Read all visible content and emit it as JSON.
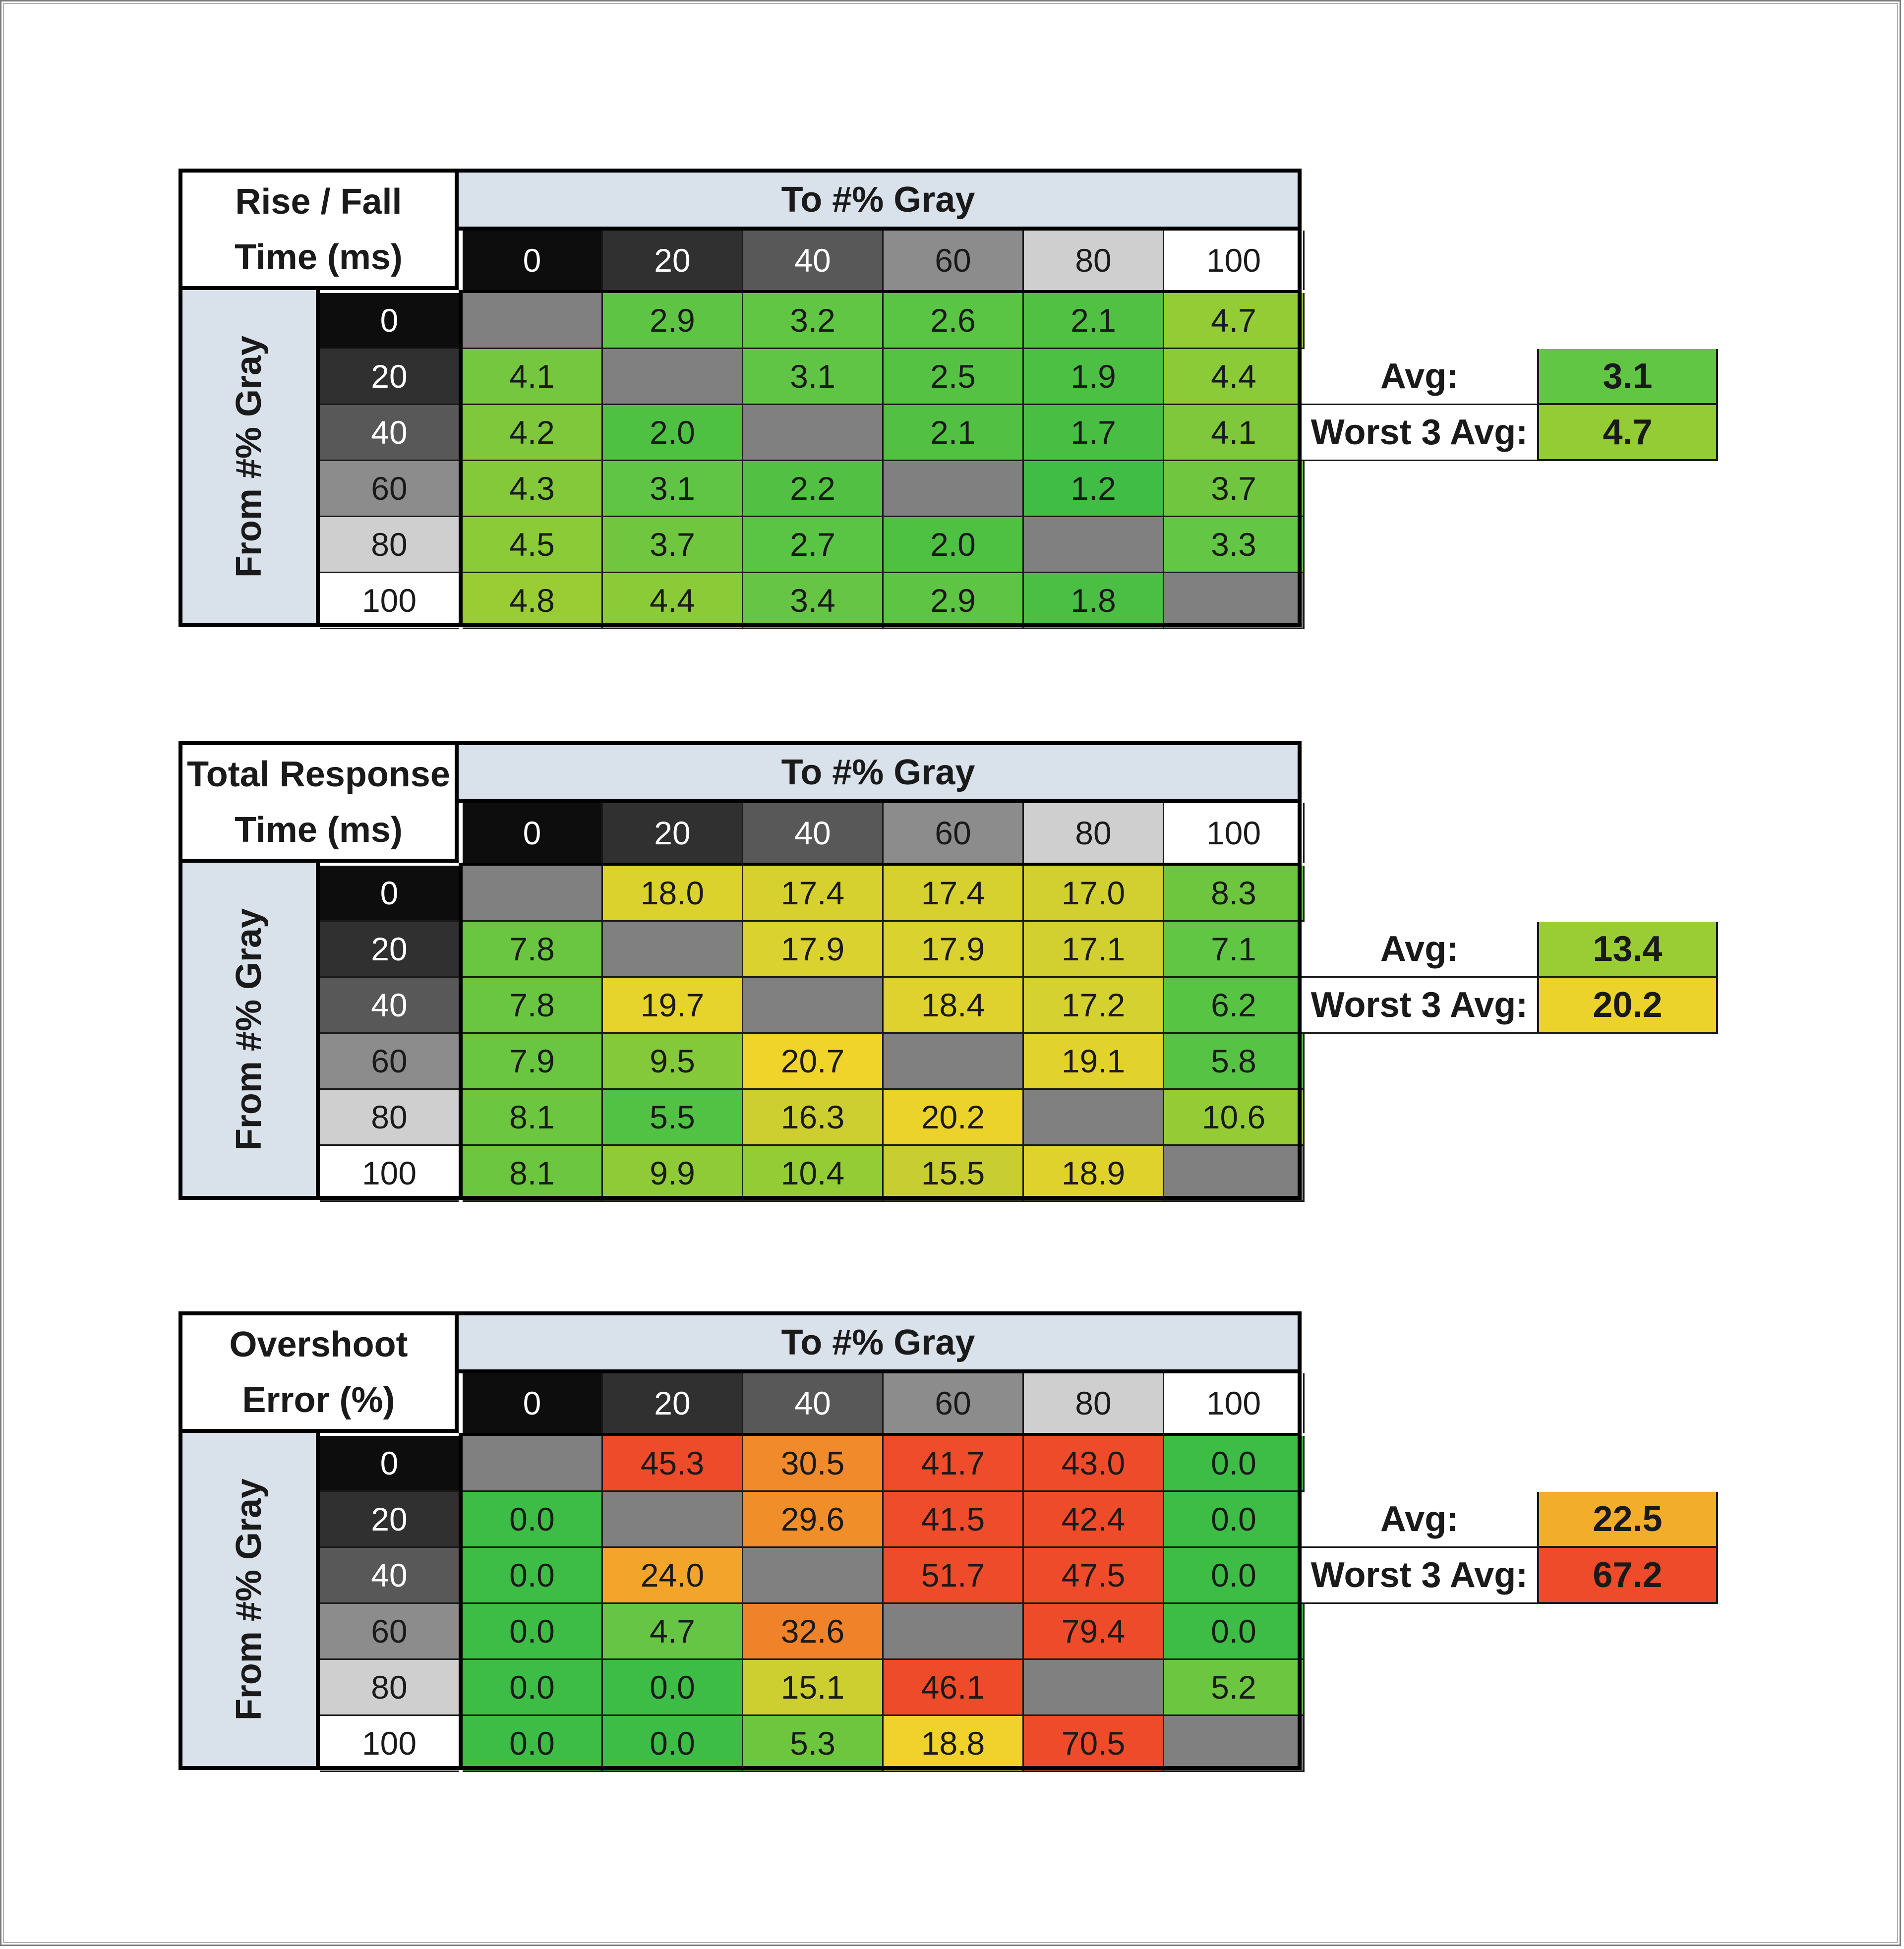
{
  "chart_data": [
    {
      "type": "heatmap",
      "title": [
        "Rise / Fall",
        "Time (ms)"
      ],
      "xlabel": "To #% Gray",
      "ylabel": "From #% Gray",
      "columns": [
        "0",
        "20",
        "40",
        "60",
        "80",
        "100"
      ],
      "rows": [
        "0",
        "20",
        "40",
        "60",
        "80",
        "100"
      ],
      "values": [
        [
          null,
          "2.9",
          "3.2",
          "2.6",
          "2.1",
          "4.7"
        ],
        [
          "4.1",
          null,
          "3.1",
          "2.5",
          "1.9",
          "4.4"
        ],
        [
          "4.2",
          "2.0",
          null,
          "2.1",
          "1.7",
          "4.1"
        ],
        [
          "4.3",
          "3.1",
          "2.2",
          null,
          "1.2",
          "3.7"
        ],
        [
          "4.5",
          "3.7",
          "2.7",
          "2.0",
          null,
          "3.3"
        ],
        [
          "4.8",
          "4.4",
          "3.4",
          "2.9",
          "1.8",
          null
        ]
      ],
      "colors": [
        [
          null,
          "#5ec544",
          "#62c645",
          "#5ac444",
          "#50c143",
          "#93cc35"
        ],
        [
          "#74c73e",
          null,
          "#60c545",
          "#56c244",
          "#4cc043",
          "#8bcb37"
        ],
        [
          "#7fc83c",
          "#4ec143",
          null,
          "#52c143",
          "#48bf43",
          "#7fc83c"
        ],
        [
          "#84c93a",
          "#60c545",
          "#52c143",
          null,
          "#3fbd44",
          "#70c73f"
        ],
        [
          "#8bcb37",
          "#70c73f",
          "#5ac444",
          "#4ec143",
          null,
          "#64c645"
        ],
        [
          "#9acd33",
          "#8bcb37",
          "#66c545",
          "#5ec544",
          "#4abf43",
          null
        ]
      ],
      "summary": [
        {
          "label": "Avg:",
          "value": "3.1",
          "color": "#62c645"
        },
        {
          "label": "Worst 3 Avg:",
          "value": "4.7",
          "color": "#93cc35"
        }
      ]
    },
    {
      "type": "heatmap",
      "title": [
        "Total Response",
        "Time (ms)"
      ],
      "xlabel": "To #% Gray",
      "ylabel": "From #% Gray",
      "columns": [
        "0",
        "20",
        "40",
        "60",
        "80",
        "100"
      ],
      "rows": [
        "0",
        "20",
        "40",
        "60",
        "80",
        "100"
      ],
      "values": [
        [
          null,
          "18.0",
          "17.4",
          "17.4",
          "17.0",
          "8.3"
        ],
        [
          "7.8",
          null,
          "17.9",
          "17.9",
          "17.1",
          "7.1"
        ],
        [
          "7.8",
          "19.7",
          null,
          "18.4",
          "17.2",
          "6.2"
        ],
        [
          "7.9",
          "9.5",
          "20.7",
          null,
          "19.1",
          "5.8"
        ],
        [
          "8.1",
          "5.5",
          "16.3",
          "20.2",
          null,
          "10.6"
        ],
        [
          "8.1",
          "9.9",
          "10.4",
          "15.5",
          "18.9",
          null
        ]
      ],
      "colors": [
        [
          null,
          "#dcd22e",
          "#d6d12f",
          "#d6d12f",
          "#d2d030",
          "#6ec63f"
        ],
        [
          "#6ac640",
          null,
          "#dad22e",
          "#dad22e",
          "#d2d030",
          "#62c645"
        ],
        [
          "#6ac640",
          "#e6d32c",
          null,
          "#dfd22e",
          "#d4d130",
          "#58c444"
        ],
        [
          "#6ac640",
          "#84c93a",
          "#f0d42a",
          null,
          "#e2d22d",
          "#56c344"
        ],
        [
          "#6cc63f",
          "#52c244",
          "#cdcf31",
          "#ebd32b",
          null,
          "#95cc35"
        ],
        [
          "#6cc63f",
          "#8ecb36",
          "#93cc35",
          "#c8ce32",
          "#e0d22d",
          null
        ]
      ],
      "summary": [
        {
          "label": "Avg:",
          "value": "13.4",
          "color": "#9acd33"
        },
        {
          "label": "Worst 3 Avg:",
          "value": "20.2",
          "color": "#ebd32b"
        }
      ]
    },
    {
      "type": "heatmap",
      "title": [
        "Overshoot",
        "Error (%)"
      ],
      "xlabel": "To #% Gray",
      "ylabel": "From #% Gray",
      "columns": [
        "0",
        "20",
        "40",
        "60",
        "80",
        "100"
      ],
      "rows": [
        "0",
        "20",
        "40",
        "60",
        "80",
        "100"
      ],
      "values": [
        [
          null,
          "45.3",
          "30.5",
          "41.7",
          "43.0",
          "0.0"
        ],
        [
          "0.0",
          null,
          "29.6",
          "41.5",
          "42.4",
          "0.0"
        ],
        [
          "0.0",
          "24.0",
          null,
          "51.7",
          "47.5",
          "0.0"
        ],
        [
          "0.0",
          "4.7",
          "32.6",
          null,
          "79.4",
          "0.0"
        ],
        [
          "0.0",
          "0.0",
          "15.1",
          "46.1",
          null,
          "5.2"
        ],
        [
          "0.0",
          "0.0",
          "5.3",
          "18.8",
          "70.5",
          null
        ]
      ],
      "colors": [
        [
          null,
          "#ee4b2b",
          "#f08a2a",
          "#ee4c2b",
          "#ee4b2b",
          "#3dbd45"
        ],
        [
          "#3dbd45",
          null,
          "#f08e2a",
          "#ee4c2b",
          "#ee4b2b",
          "#3dbd45"
        ],
        [
          "#3dbd45",
          "#f2a52a",
          null,
          "#ee4b2b",
          "#ee4b2b",
          "#3dbd45"
        ],
        [
          "#3dbd45",
          "#66c545",
          "#f0822a",
          null,
          "#ee4b2b",
          "#3dbd45"
        ],
        [
          "#3dbd45",
          "#3dbd45",
          "#cdcf31",
          "#ee4b2b",
          null,
          "#6cc63f"
        ],
        [
          "#3dbd45",
          "#3dbd45",
          "#6ec63f",
          "#f1d12c",
          "#ee4b2b",
          null
        ]
      ],
      "summary": [
        {
          "label": "Avg:",
          "value": "22.5",
          "color": "#f2ad2a"
        },
        {
          "label": "Worst 3 Avg:",
          "value": "67.2",
          "color": "#ee4b2b"
        }
      ]
    }
  ]
}
